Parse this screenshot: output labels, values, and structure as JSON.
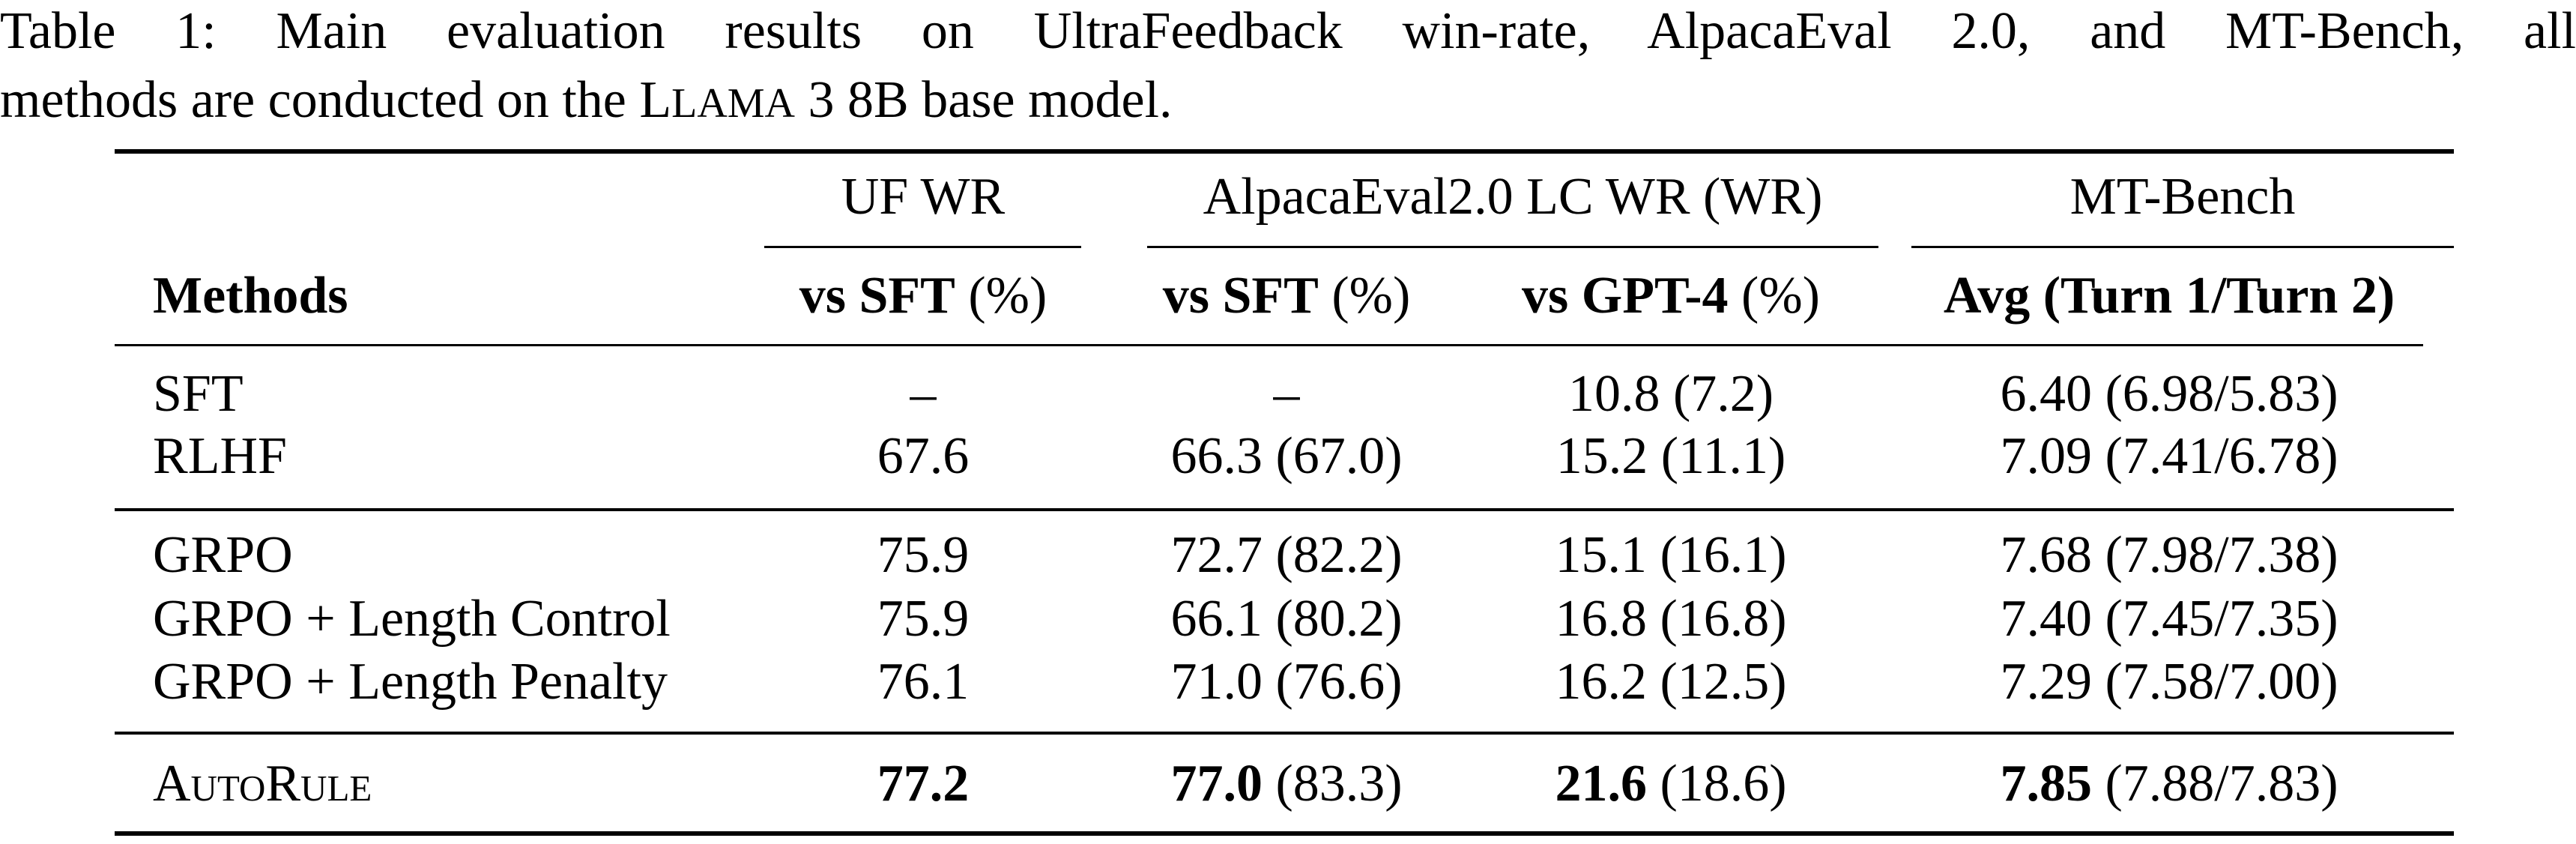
{
  "caption": {
    "label": "Table 1:",
    "line1": "Main evaluation results on UltraFeedback win-rate, AlpacaEval 2.0, and MT-Bench, all",
    "line2_before": "methods are conducted on the",
    "model_name": "LLaMA",
    "line2_after": "3 8B base model."
  },
  "header": {
    "groups": [
      "UF WR",
      "AlpacaEval2.0 LC WR (WR)",
      "MT-Bench"
    ],
    "methods": "Methods",
    "columns": [
      {
        "bold": "vs SFT",
        "rest": " (%)"
      },
      {
        "bold": "vs SFT",
        "rest": " (%)"
      },
      {
        "bold": "vs GPT-4",
        "rest": " (%)"
      },
      {
        "bold": "Avg (Turn 1/Turn 2)",
        "rest": ""
      }
    ]
  },
  "rows": [
    {
      "method": "SFT",
      "cells": [
        {
          "b": "",
          "n": "–"
        },
        {
          "b": "",
          "n": "–"
        },
        {
          "b": "",
          "n": "10.8 (7.2)"
        },
        {
          "b": "",
          "n": "6.40 (6.98/5.83)"
        }
      ]
    },
    {
      "method": "RLHF",
      "cells": [
        {
          "b": "",
          "n": "67.6"
        },
        {
          "b": "",
          "n": "66.3 (67.0)"
        },
        {
          "b": "",
          "n": "15.2 (11.1)"
        },
        {
          "b": "",
          "n": "7.09 (7.41/6.78)"
        }
      ]
    },
    {
      "method": "GRPO",
      "cells": [
        {
          "b": "",
          "n": "75.9"
        },
        {
          "b": "",
          "n": "72.7 (82.2)"
        },
        {
          "b": "",
          "n": "15.1 (16.1)"
        },
        {
          "b": "",
          "n": "7.68 (7.98/7.38)"
        }
      ]
    },
    {
      "method": "GRPO + Length Control",
      "cells": [
        {
          "b": "",
          "n": "75.9"
        },
        {
          "b": "",
          "n": "66.1 (80.2)"
        },
        {
          "b": "",
          "n": "16.8 (16.8)"
        },
        {
          "b": "",
          "n": "7.40 (7.45/7.35)"
        }
      ]
    },
    {
      "method": "GRPO + Length Penalty",
      "cells": [
        {
          "b": "",
          "n": "76.1"
        },
        {
          "b": "",
          "n": "71.0 (76.6)"
        },
        {
          "b": "",
          "n": "16.2 (12.5)"
        },
        {
          "b": "",
          "n": "7.29 (7.58/7.00)"
        }
      ]
    },
    {
      "method": "AutoRule",
      "smallcaps": true,
      "cells": [
        {
          "b": "77.2",
          "n": ""
        },
        {
          "b": "77.0",
          "n": " (83.3)"
        },
        {
          "b": "21.6",
          "n": " (18.6)"
        },
        {
          "b": "7.85",
          "n": " (7.88/7.83)"
        }
      ]
    }
  ]
}
